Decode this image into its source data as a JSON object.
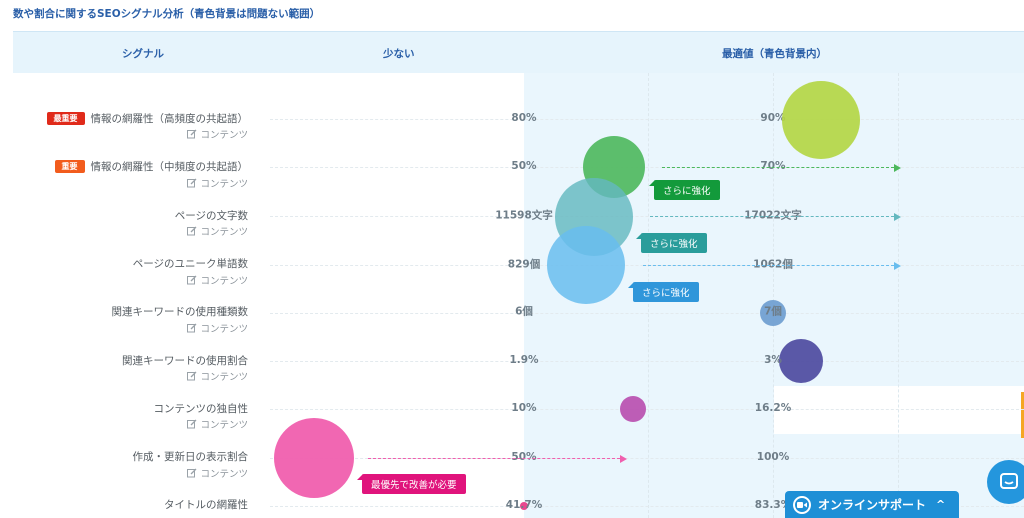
{
  "heading": "数や割合に関するSEOシグナル分析（青色背景は問題ない範囲）",
  "columns": {
    "signal": "シグナル",
    "low": "少ない",
    "optimal": "最適値（青色背景内）"
  },
  "rows": [
    {
      "tag": "最重要",
      "tag_color": "#e02a1a",
      "title": "情報の網羅性（高頻度の共起語）",
      "category": "コンテンツ",
      "low": "80%",
      "optimal": "90%"
    },
    {
      "tag": "重要",
      "tag_color": "#f25c1d",
      "title": "情報の網羅性（中頻度の共起語）",
      "category": "コンテンツ",
      "low": "50%",
      "optimal": "70%"
    },
    {
      "title": "ページの文字数",
      "category": "コンテンツ",
      "low": "11598文字",
      "optimal": "17022文字"
    },
    {
      "title": "ページのユニーク単語数",
      "category": "コンテンツ",
      "low": "829個",
      "optimal": "1062個"
    },
    {
      "title": "関連キーワードの使用種類数",
      "category": "コンテンツ",
      "low": "6個",
      "optimal": "7個"
    },
    {
      "title": "関連キーワードの使用割合",
      "category": "コンテンツ",
      "low": "1.9%",
      "optimal": "3%"
    },
    {
      "title": "コンテンツの独自性",
      "category": "コンテンツ",
      "low": "10%",
      "optimal": "16.2%"
    },
    {
      "title": "作成・更新日の表示割合",
      "category": "コンテンツ",
      "low": "50%",
      "optimal": "100%"
    },
    {
      "title": "タイトルの網羅性",
      "category": "",
      "low": "41.7%",
      "optimal": "83.3%"
    }
  ],
  "callouts": [
    {
      "text": "さらに強化",
      "color": "#139a3b"
    },
    {
      "text": "さらに強化",
      "color": "#2a9d9b"
    },
    {
      "text": "さらに強化",
      "color": "#2f96da"
    },
    {
      "text": "最優先で改善が必要",
      "color": "#e0147c"
    }
  ],
  "bubble_colors": [
    "#b3d645",
    "#4cb85c",
    "#64b8bf",
    "#69bdee",
    "#6c9ccf",
    "#4d4aa0",
    "#b94fb0",
    "#f05fae",
    "#e8488f"
  ],
  "support": {
    "label": "オンラインサポート",
    "icon": "video-camera-icon"
  },
  "chat_icon": "chat-icon"
}
